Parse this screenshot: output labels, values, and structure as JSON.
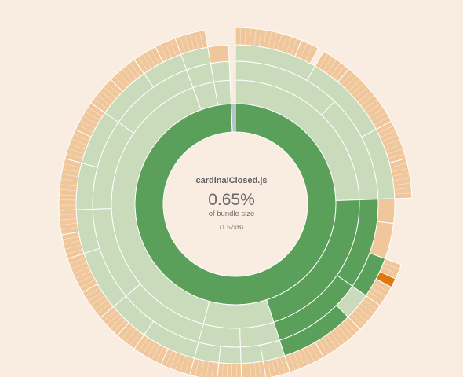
{
  "details": {
    "file_name": "cardinalClosed.js",
    "percentage": "0.65%",
    "percentage_label": "of bundle size",
    "size": "(1.57kB)"
  },
  "colors": {
    "background": "#f8ede0",
    "depth1": "#5aa05a",
    "depth1_alt": "#b7c4c8",
    "depth2": "#c9dbbb",
    "depth3": "#c9dbbb",
    "outer": "#f0c69b",
    "highlight": "#e07812",
    "stroke": "#ffffff"
  },
  "chart_data": {
    "type": "sunburst",
    "title": "",
    "unit": "degrees (clockwise from top)",
    "rings": [
      {
        "depth": 1,
        "arcs": [
          {
            "start": -2.5,
            "end": 0,
            "color": "depth1_alt"
          },
          {
            "start": 0,
            "end": 357.5,
            "color": "depth1"
          }
        ]
      },
      {
        "depth": 2,
        "arcs": [
          {
            "start": 0,
            "end": 88,
            "color": "depth2"
          },
          {
            "start": 88,
            "end": 162,
            "color": "depth1"
          },
          {
            "start": 162,
            "end": 195,
            "color": "depth2"
          },
          {
            "start": 195,
            "end": 340,
            "color": "depth2"
          },
          {
            "start": 340,
            "end": 350,
            "color": "depth2"
          },
          {
            "start": 350,
            "end": 357.5,
            "color": "depth2"
          }
        ]
      },
      {
        "depth": 3,
        "arcs": [
          {
            "start": 0,
            "end": 44,
            "color": "depth3"
          },
          {
            "start": 44,
            "end": 88,
            "color": "depth3"
          },
          {
            "start": 88,
            "end": 125,
            "color": "depth1"
          },
          {
            "start": 125,
            "end": 162,
            "color": "depth1"
          },
          {
            "start": 162,
            "end": 178,
            "color": "depth3"
          },
          {
            "start": 178,
            "end": 195,
            "color": "depth3"
          },
          {
            "start": 195,
            "end": 230,
            "color": "depth3"
          },
          {
            "start": 230,
            "end": 268,
            "color": "depth3"
          },
          {
            "start": 268,
            "end": 305,
            "color": "depth3"
          },
          {
            "start": 305,
            "end": 340,
            "color": "depth3"
          },
          {
            "start": 340,
            "end": 350,
            "color": "depth3"
          },
          {
            "start": 350,
            "end": 357.5,
            "color": "depth3"
          }
        ]
      },
      {
        "depth": 4,
        "arcs": [
          {
            "start": 0,
            "end": 30,
            "color": "depth3"
          },
          {
            "start": 30,
            "end": 62,
            "color": "depth3"
          },
          {
            "start": 62,
            "end": 88,
            "color": "depth3"
          },
          {
            "start": 88,
            "end": 97,
            "color": "outer"
          },
          {
            "start": 97,
            "end": 110,
            "color": "outer"
          },
          {
            "start": 110,
            "end": 125,
            "color": "depth1"
          },
          {
            "start": 125,
            "end": 135,
            "color": "depth3"
          },
          {
            "start": 135,
            "end": 162,
            "color": "depth1"
          },
          {
            "start": 162,
            "end": 170,
            "color": "depth3"
          },
          {
            "start": 170,
            "end": 178,
            "color": "depth3"
          },
          {
            "start": 178,
            "end": 186,
            "color": "depth3"
          },
          {
            "start": 186,
            "end": 195,
            "color": "depth3"
          },
          {
            "start": 195,
            "end": 215,
            "color": "depth3"
          },
          {
            "start": 215,
            "end": 230,
            "color": "depth3"
          },
          {
            "start": 230,
            "end": 252,
            "color": "depth3"
          },
          {
            "start": 252,
            "end": 268,
            "color": "depth3"
          },
          {
            "start": 268,
            "end": 285,
            "color": "depth3"
          },
          {
            "start": 285,
            "end": 305,
            "color": "depth3"
          },
          {
            "start": 305,
            "end": 325,
            "color": "depth3"
          },
          {
            "start": 325,
            "end": 340,
            "color": "depth3"
          },
          {
            "start": 340,
            "end": 350,
            "color": "depth3"
          },
          {
            "start": 350,
            "end": 357.5,
            "color": "outer"
          }
        ]
      },
      {
        "depth": 5,
        "arcs": [
          {
            "start": 0,
            "end": 22,
            "color": "outer"
          },
          {
            "start": 22,
            "end": 28,
            "color": "outer"
          },
          {
            "start": 30,
            "end": 40,
            "color": "outer"
          },
          {
            "start": 40,
            "end": 62,
            "color": "outer"
          },
          {
            "start": 62,
            "end": 75,
            "color": "outer"
          },
          {
            "start": 75,
            "end": 88,
            "color": "outer"
          },
          {
            "start": 110,
            "end": 115,
            "color": "outer"
          },
          {
            "start": 115,
            "end": 118,
            "color": "highlight"
          },
          {
            "start": 118,
            "end": 125,
            "color": "outer"
          },
          {
            "start": 125,
            "end": 135,
            "color": "outer"
          },
          {
            "start": 135,
            "end": 150,
            "color": "outer"
          },
          {
            "start": 150,
            "end": 162,
            "color": "outer"
          },
          {
            "start": 162,
            "end": 170,
            "color": "outer"
          },
          {
            "start": 170,
            "end": 178,
            "color": "outer"
          },
          {
            "start": 178,
            "end": 186,
            "color": "outer"
          },
          {
            "start": 186,
            "end": 195,
            "color": "outer"
          },
          {
            "start": 195,
            "end": 205,
            "color": "outer"
          },
          {
            "start": 205,
            "end": 215,
            "color": "outer"
          },
          {
            "start": 215,
            "end": 222,
            "color": "outer"
          },
          {
            "start": 222,
            "end": 230,
            "color": "outer"
          },
          {
            "start": 230,
            "end": 240,
            "color": "outer"
          },
          {
            "start": 240,
            "end": 252,
            "color": "outer"
          },
          {
            "start": 252,
            "end": 260,
            "color": "outer"
          },
          {
            "start": 260,
            "end": 268,
            "color": "outer"
          },
          {
            "start": 268,
            "end": 285,
            "color": "outer"
          },
          {
            "start": 285,
            "end": 295,
            "color": "outer"
          },
          {
            "start": 295,
            "end": 305,
            "color": "outer"
          },
          {
            "start": 305,
            "end": 315,
            "color": "outer"
          },
          {
            "start": 315,
            "end": 325,
            "color": "outer"
          },
          {
            "start": 325,
            "end": 333,
            "color": "outer"
          },
          {
            "start": 333,
            "end": 340,
            "color": "outer"
          },
          {
            "start": 340,
            "end": 350,
            "color": "outer"
          }
        ]
      }
    ]
  }
}
